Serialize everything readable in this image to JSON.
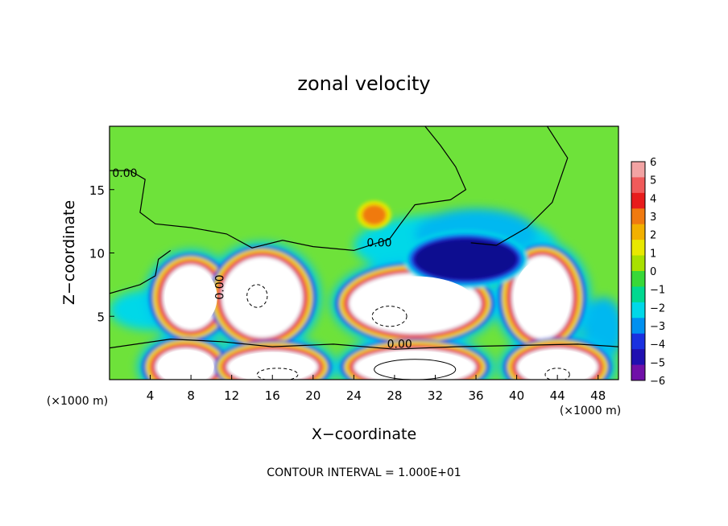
{
  "chart_data": {
    "type": "heatmap",
    "title": "zonal velocity",
    "xlabel": "X−coordinate",
    "ylabel": "Z−coordinate",
    "x_unit_left": "(×1000 m)",
    "x_unit_right": "(×1000 m)",
    "footer": "CONTOUR INTERVAL = 1.000E+01",
    "xlim": [
      0,
      50
    ],
    "ylim": [
      0,
      20
    ],
    "x_ticks": [
      4,
      8,
      12,
      16,
      20,
      24,
      28,
      32,
      36,
      40,
      44,
      48
    ],
    "y_ticks": [
      5,
      10,
      15
    ],
    "colorbar": {
      "ticks": [
        "6",
        "5",
        "4",
        "3",
        "2",
        "1",
        "0",
        "−1",
        "−2",
        "−3",
        "−4",
        "−5",
        "−6"
      ],
      "colors": [
        "#f2a3a3",
        "#f05a5a",
        "#e81c1c",
        "#f07a10",
        "#f2b000",
        "#e8e800",
        "#a8e000",
        "#38d838",
        "#00d890",
        "#00d8e8",
        "#0090f0",
        "#1a30e0",
        "#2010b0",
        "#7010a8"
      ],
      "placement": "right"
    },
    "contour_labels": [
      {
        "text": "0.00",
        "x": 1.5,
        "z": 16.0
      },
      {
        "text": "0.00",
        "x": 26.5,
        "z": 10.5
      },
      {
        "text": "0.00",
        "x": 11.2,
        "z": 7.3
      },
      {
        "text": "0.00",
        "x": 28.5,
        "z": 2.5
      }
    ],
    "features": [
      {
        "kind": "saturated_positive",
        "cx": 8.0,
        "cz": 6.5,
        "rx": 2.8,
        "rz": 2.6
      },
      {
        "kind": "saturated_positive",
        "cx": 15.0,
        "cz": 6.5,
        "rx": 4.0,
        "rz": 3.2
      },
      {
        "kind": "saturated_positive",
        "cx": 30.0,
        "cz": 6.0,
        "rx": 6.5,
        "rz": 2.4
      },
      {
        "kind": "saturated_positive",
        "cx": 42.5,
        "cz": 6.5,
        "rx": 3.0,
        "rz": 3.3
      },
      {
        "kind": "saturated_positive",
        "cx": 7.5,
        "cz": 1.0,
        "rx": 3.0,
        "rz": 1.5
      },
      {
        "kind": "saturated_positive",
        "cx": 16.0,
        "cz": 1.0,
        "rx": 4.5,
        "rz": 1.3
      },
      {
        "kind": "saturated_positive",
        "cx": 30.0,
        "cz": 1.0,
        "rx": 6.0,
        "rz": 1.4
      },
      {
        "kind": "saturated_positive",
        "cx": 44.0,
        "cz": 1.0,
        "rx": 4.0,
        "rz": 1.5
      },
      {
        "kind": "saturated_negative",
        "cx": 35.0,
        "cz": 9.5,
        "rx": 5.0,
        "rz": 1.6
      },
      {
        "kind": "positive_max",
        "cx": 26.0,
        "cz": 13.0,
        "rx": 1.2,
        "rz": 0.8
      }
    ]
  }
}
